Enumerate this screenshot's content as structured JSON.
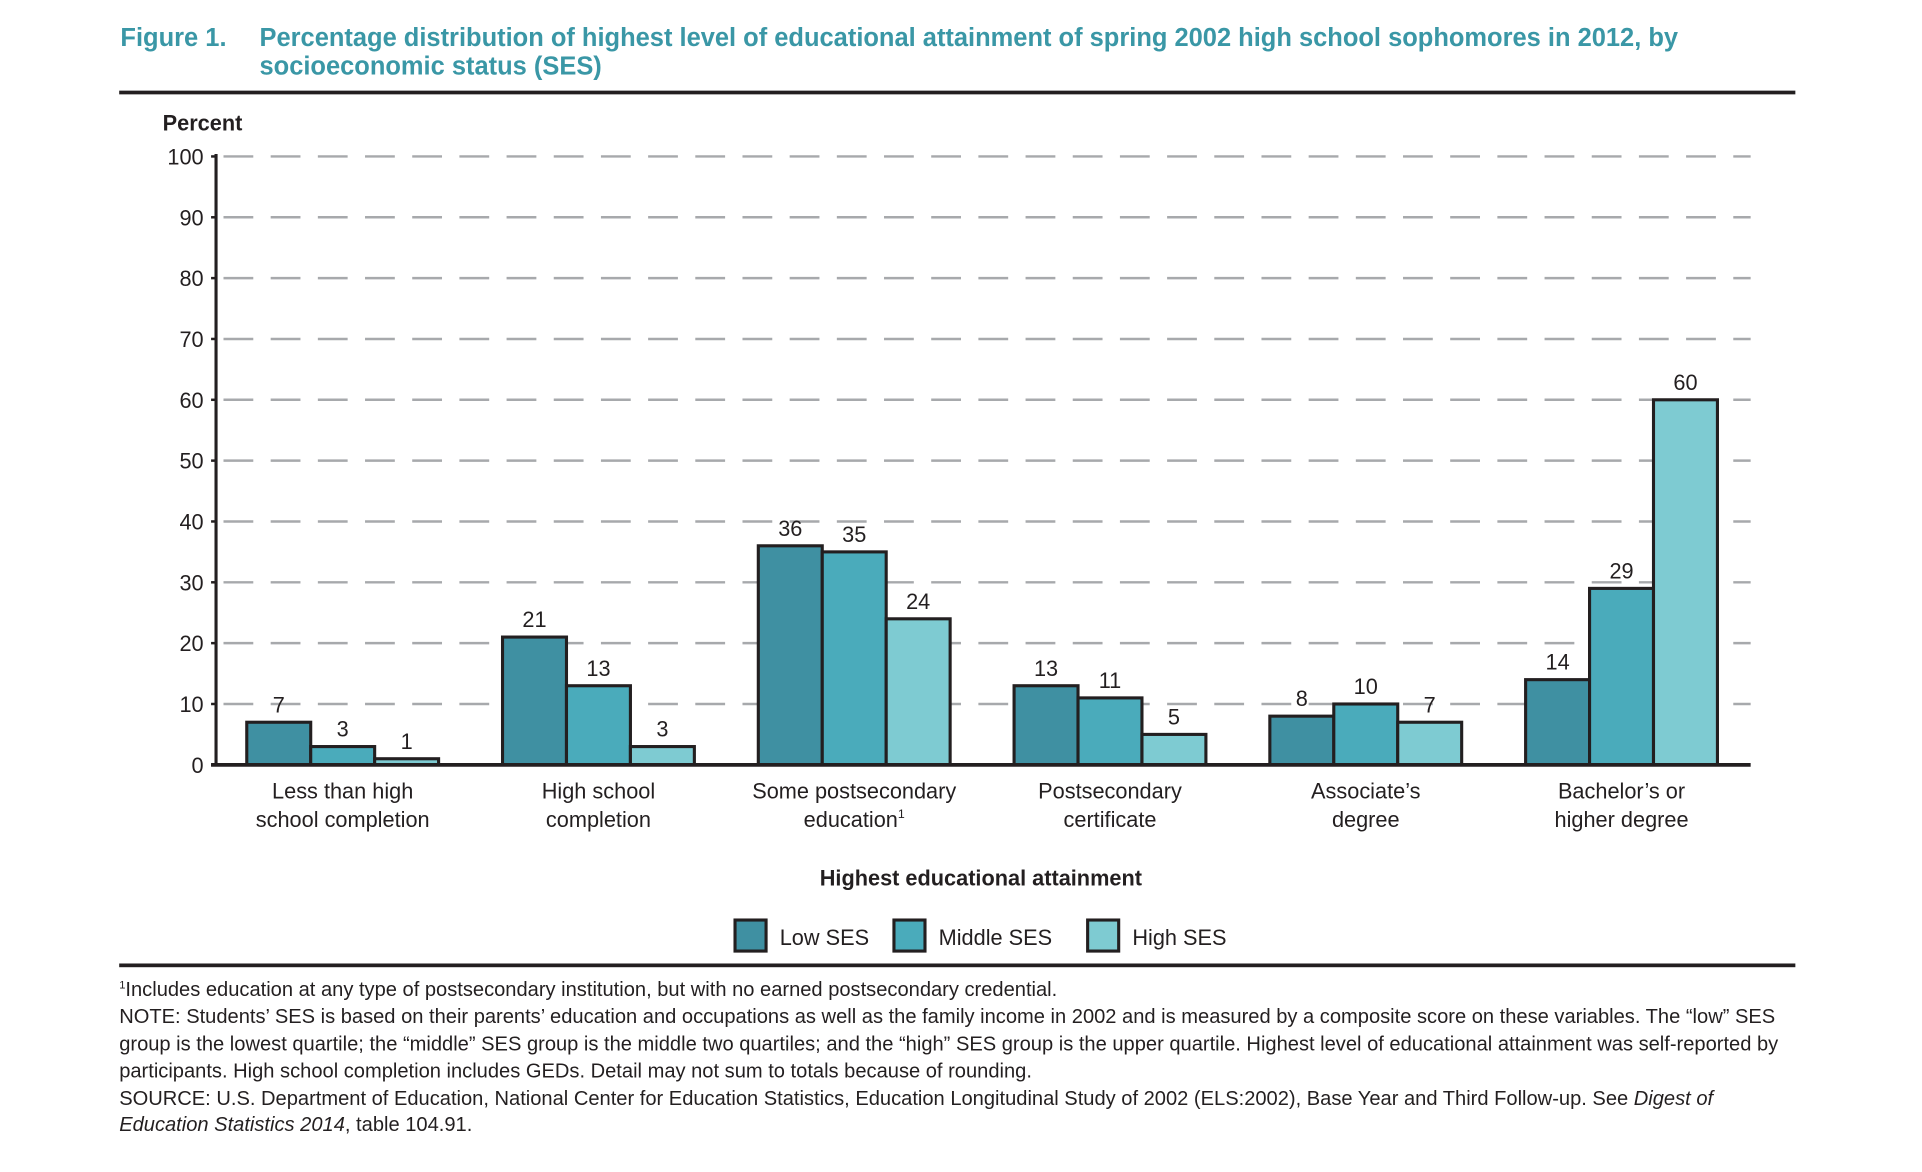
{
  "figure_label": "Figure 1.",
  "title": "Percentage distribution of highest level of educational attainment of spring 2002 high school sophomores in 2012, by socioeconomic status (SES)",
  "chart_data": {
    "type": "bar",
    "title": "Percentage distribution of highest level of educational attainment of spring 2002 high school sophomores in 2012, by socioeconomic status (SES)",
    "ylabel": "Percent",
    "xlabel": "Highest educational attainment",
    "ylim": [
      0,
      100
    ],
    "yticks": [
      0,
      10,
      20,
      30,
      40,
      50,
      60,
      70,
      80,
      90,
      100
    ],
    "grid": true,
    "legend_position": "bottom",
    "categories": [
      [
        "Less than high",
        "school completion"
      ],
      [
        "High school",
        "completion"
      ],
      [
        "Some postsecondary",
        "education"
      ],
      [
        "Postsecondary",
        "certificate"
      ],
      [
        "Associate’s",
        "degree"
      ],
      [
        "Bachelor’s or",
        "higher degree"
      ]
    ],
    "category_footnote_marks": [
      "",
      "",
      "1",
      "",
      "",
      ""
    ],
    "series": [
      {
        "name": "Low SES",
        "color": "#3f90a2",
        "values": [
          7,
          21,
          36,
          13,
          8,
          14
        ]
      },
      {
        "name": "Middle SES",
        "color": "#4aabbb",
        "values": [
          3,
          13,
          35,
          11,
          10,
          29
        ]
      },
      {
        "name": "High SES",
        "color": "#7ecbd2",
        "values": [
          1,
          3,
          24,
          5,
          7,
          60
        ]
      }
    ]
  },
  "notes": {
    "footnote_mark": "1",
    "footnote": "Includes education at any type of postsecondary institution, but with no earned postsecondary credential.",
    "note": "NOTE: Students’ SES is based on their parents’ education and occupations as well as the family income in 2002 and is measured by a composite score on these variables. The “low” SES group is the lowest quartile; the “middle” SES group is the middle two quartiles; and the “high” SES group is the upper quartile. Highest level of educational attainment was self-reported by participants. High school completion includes GEDs. Detail may not sum to totals because of rounding.",
    "source_prefix": "SOURCE: U.S. Department of Education, National Center for Education Statistics, Education Longitudinal Study of 2002 (ELS:2002), Base Year and Third Follow-up. See ",
    "source_italic": "Digest of Education Statistics 2014",
    "source_suffix": ", table 104.91."
  }
}
